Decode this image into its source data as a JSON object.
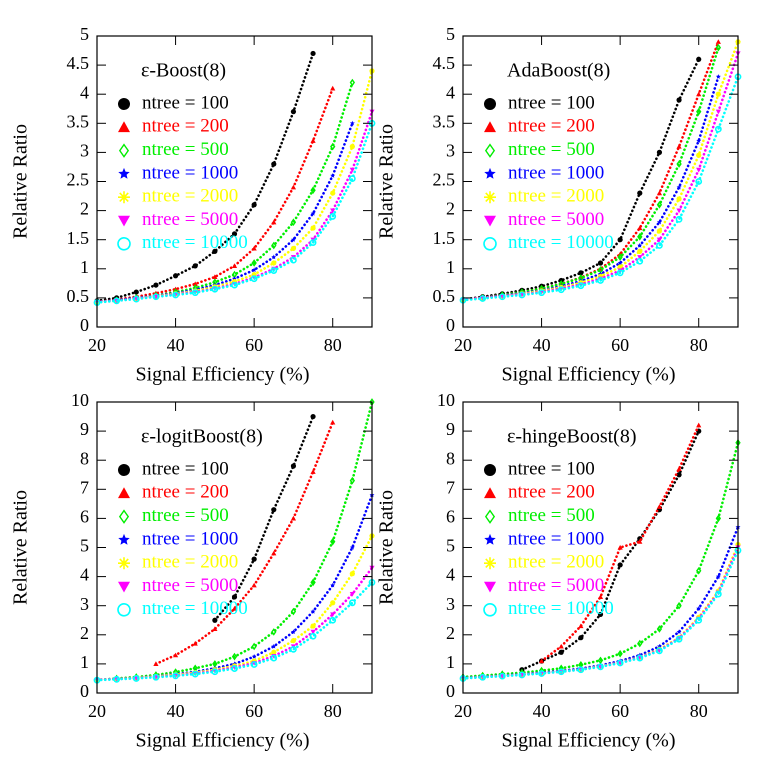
{
  "chart_data": [
    {
      "type": "line",
      "title": "ε-Boost(8)",
      "xlabel": "Signal Efficiency (%)",
      "ylabel": "Relative Ratio",
      "x": [
        20,
        25,
        30,
        35,
        40,
        45,
        50,
        55,
        60,
        65,
        70,
        75,
        80,
        85,
        90
      ],
      "xlim": [
        20,
        90
      ],
      "xticks": [
        20,
        40,
        60,
        80
      ],
      "ylim": [
        0,
        5
      ],
      "yticks": [
        0,
        0.5,
        1,
        1.5,
        2,
        2.5,
        3,
        3.5,
        4,
        4.5,
        5
      ],
      "series": [
        {
          "name": "ntree = 100",
          "color": "#000000",
          "marker": "circle",
          "values": [
            0.45,
            0.5,
            0.6,
            0.72,
            0.88,
            1.05,
            1.3,
            1.6,
            2.1,
            2.8,
            3.7,
            4.7,
            null,
            null,
            null
          ]
        },
        {
          "name": "ntree = 200",
          "color": "#ff0000",
          "marker": "triangle",
          "values": [
            0.43,
            0.47,
            0.52,
            0.58,
            0.65,
            0.74,
            0.86,
            1.05,
            1.35,
            1.8,
            2.4,
            3.2,
            4.1,
            null,
            null
          ]
        },
        {
          "name": "ntree = 500",
          "color": "#00ee00",
          "marker": "diamond",
          "values": [
            0.43,
            0.46,
            0.5,
            0.54,
            0.6,
            0.67,
            0.77,
            0.9,
            1.1,
            1.4,
            1.8,
            2.35,
            3.1,
            4.2,
            null
          ]
        },
        {
          "name": "ntree = 1000",
          "color": "#0000ff",
          "marker": "star",
          "values": [
            0.43,
            0.46,
            0.5,
            0.54,
            0.58,
            0.64,
            0.72,
            0.83,
            0.98,
            1.2,
            1.5,
            1.95,
            2.6,
            3.5,
            null
          ]
        },
        {
          "name": "ntree = 2000",
          "color": "#ffff00",
          "marker": "asterisk",
          "values": [
            0.43,
            0.45,
            0.49,
            0.53,
            0.57,
            0.62,
            0.69,
            0.78,
            0.9,
            1.1,
            1.35,
            1.7,
            2.3,
            3.1,
            4.4
          ]
        },
        {
          "name": "ntree = 5000",
          "color": "#ff00ff",
          "marker": "invtriangle",
          "values": [
            0.43,
            0.45,
            0.49,
            0.52,
            0.56,
            0.6,
            0.66,
            0.74,
            0.85,
            1.0,
            1.2,
            1.5,
            2.0,
            2.7,
            3.7
          ]
        },
        {
          "name": "ntree = 10000",
          "color": "#00ffff",
          "marker": "opencircle",
          "values": [
            0.42,
            0.45,
            0.48,
            0.52,
            0.55,
            0.59,
            0.65,
            0.72,
            0.83,
            0.97,
            1.15,
            1.45,
            1.9,
            2.55,
            3.5
          ]
        }
      ]
    },
    {
      "type": "line",
      "title": "AdaBoost(8)",
      "xlabel": "Signal Efficiency (%)",
      "ylabel": "Relative Ratio",
      "x": [
        20,
        25,
        30,
        35,
        40,
        45,
        50,
        55,
        60,
        65,
        70,
        75,
        80,
        85,
        90
      ],
      "xlim": [
        20,
        90
      ],
      "xticks": [
        20,
        40,
        60,
        80
      ],
      "ylim": [
        0,
        5
      ],
      "yticks": [
        0,
        0.5,
        1,
        1.5,
        2,
        2.5,
        3,
        3.5,
        4,
        4.5,
        5
      ],
      "series": [
        {
          "name": "ntree = 100",
          "color": "#000000",
          "marker": "circle",
          "values": [
            0.47,
            0.52,
            0.57,
            0.63,
            0.7,
            0.8,
            0.93,
            1.1,
            1.5,
            2.3,
            3.0,
            3.9,
            4.6,
            null,
            null
          ]
        },
        {
          "name": "ntree = 200",
          "color": "#ff0000",
          "marker": "triangle",
          "values": [
            0.47,
            0.5,
            0.55,
            0.6,
            0.66,
            0.74,
            0.85,
            1.0,
            1.25,
            1.7,
            2.3,
            3.1,
            4.0,
            4.9,
            null
          ]
        },
        {
          "name": "ntree = 500",
          "color": "#00ee00",
          "marker": "diamond",
          "values": [
            0.47,
            0.5,
            0.55,
            0.6,
            0.66,
            0.74,
            0.84,
            0.98,
            1.2,
            1.55,
            2.1,
            2.8,
            3.7,
            4.8,
            null
          ]
        },
        {
          "name": "ntree = 1000",
          "color": "#0000ff",
          "marker": "star",
          "values": [
            0.47,
            0.5,
            0.54,
            0.58,
            0.63,
            0.7,
            0.79,
            0.91,
            1.1,
            1.4,
            1.8,
            2.4,
            3.2,
            4.3,
            null
          ]
        },
        {
          "name": "ntree = 2000",
          "color": "#ffff00",
          "marker": "asterisk",
          "values": [
            0.47,
            0.5,
            0.53,
            0.57,
            0.62,
            0.68,
            0.76,
            0.87,
            1.03,
            1.3,
            1.65,
            2.2,
            2.95,
            4.0,
            4.9
          ]
        },
        {
          "name": "ntree = 5000",
          "color": "#ff00ff",
          "marker": "invtriangle",
          "values": [
            0.47,
            0.5,
            0.53,
            0.56,
            0.6,
            0.66,
            0.73,
            0.83,
            0.97,
            1.2,
            1.5,
            2.0,
            2.7,
            3.7,
            4.7
          ]
        },
        {
          "name": "ntree = 10000",
          "color": "#00ffff",
          "marker": "opencircle",
          "values": [
            0.46,
            0.49,
            0.52,
            0.55,
            0.59,
            0.64,
            0.71,
            0.8,
            0.93,
            1.13,
            1.4,
            1.85,
            2.5,
            3.4,
            4.3
          ]
        }
      ]
    },
    {
      "type": "line",
      "title": "ε-logitBoost(8)",
      "xlabel": "Signal Efficiency (%)",
      "ylabel": "Relative Ratio",
      "x": [
        20,
        25,
        30,
        35,
        40,
        45,
        50,
        55,
        60,
        65,
        70,
        75,
        80,
        85,
        90
      ],
      "xlim": [
        20,
        90
      ],
      "xticks": [
        20,
        40,
        60,
        80
      ],
      "ylim": [
        0,
        10
      ],
      "yticks": [
        0,
        1,
        2,
        3,
        4,
        5,
        6,
        7,
        8,
        9,
        10
      ],
      "series": [
        {
          "name": "ntree = 100",
          "color": "#000000",
          "marker": "circle",
          "values": [
            null,
            null,
            null,
            null,
            null,
            null,
            2.5,
            3.3,
            4.6,
            6.3,
            7.8,
            9.5,
            null,
            null,
            null
          ]
        },
        {
          "name": "ntree = 200",
          "color": "#ff0000",
          "marker": "triangle",
          "values": [
            null,
            null,
            null,
            1.0,
            1.3,
            1.7,
            2.2,
            2.9,
            3.7,
            4.8,
            6.0,
            7.6,
            9.3,
            null,
            null
          ]
        },
        {
          "name": "ntree = 500",
          "color": "#00ee00",
          "marker": "diamond",
          "values": [
            0.45,
            0.5,
            0.55,
            0.62,
            0.72,
            0.85,
            1.0,
            1.25,
            1.6,
            2.1,
            2.8,
            3.8,
            5.2,
            7.3,
            10
          ]
        },
        {
          "name": "ntree = 1000",
          "color": "#0000ff",
          "marker": "star",
          "values": [
            0.45,
            0.48,
            0.52,
            0.58,
            0.65,
            0.73,
            0.85,
            1.0,
            1.25,
            1.6,
            2.1,
            2.8,
            3.7,
            5.0,
            6.8
          ]
        },
        {
          "name": "ntree = 2000",
          "color": "#ffff00",
          "marker": "asterisk",
          "values": [
            0.45,
            0.48,
            0.52,
            0.57,
            0.63,
            0.7,
            0.8,
            0.93,
            1.1,
            1.4,
            1.8,
            2.3,
            3.1,
            4.1,
            5.4
          ]
        },
        {
          "name": "ntree = 5000",
          "color": "#ff00ff",
          "marker": "invtriangle",
          "values": [
            0.45,
            0.48,
            0.51,
            0.55,
            0.6,
            0.67,
            0.76,
            0.88,
            1.03,
            1.27,
            1.6,
            2.1,
            2.7,
            3.4,
            4.3
          ]
        },
        {
          "name": "ntree = 10000",
          "color": "#00ffff",
          "marker": "opencircle",
          "values": [
            0.44,
            0.47,
            0.5,
            0.54,
            0.59,
            0.65,
            0.73,
            0.84,
            0.98,
            1.2,
            1.5,
            1.95,
            2.5,
            3.1,
            3.8
          ]
        }
      ]
    },
    {
      "type": "line",
      "title": "ε-hingeBoost(8)",
      "xlabel": "Signal Efficiency (%)",
      "ylabel": "Relative Ratio",
      "x": [
        20,
        25,
        30,
        35,
        40,
        45,
        50,
        55,
        60,
        65,
        70,
        75,
        80,
        85,
        90
      ],
      "xlim": [
        20,
        90
      ],
      "xticks": [
        20,
        40,
        60,
        80
      ],
      "ylim": [
        0,
        10
      ],
      "yticks": [
        0,
        1,
        2,
        3,
        4,
        5,
        6,
        7,
        8,
        9,
        10
      ],
      "series": [
        {
          "name": "ntree = 100",
          "color": "#000000",
          "marker": "circle",
          "values": [
            null,
            null,
            null,
            0.8,
            1.1,
            1.4,
            1.9,
            2.7,
            4.4,
            5.3,
            6.3,
            7.5,
            9.0,
            null,
            null
          ]
        },
        {
          "name": "ntree = 200",
          "color": "#ff0000",
          "marker": "triangle",
          "values": [
            null,
            null,
            null,
            null,
            1.1,
            1.6,
            2.3,
            3.3,
            5.0,
            5.2,
            6.4,
            7.7,
            9.2,
            null,
            null
          ]
        },
        {
          "name": "ntree = 500",
          "color": "#00ee00",
          "marker": "diamond",
          "values": [
            0.55,
            0.6,
            0.65,
            0.7,
            0.77,
            0.85,
            0.97,
            1.12,
            1.35,
            1.7,
            2.2,
            3.0,
            4.2,
            6.0,
            8.6
          ]
        },
        {
          "name": "ntree = 1000",
          "color": "#0000ff",
          "marker": "star",
          "values": [
            0.52,
            0.56,
            0.6,
            0.64,
            0.7,
            0.76,
            0.84,
            0.95,
            1.1,
            1.3,
            1.6,
            2.1,
            2.9,
            4.0,
            5.7
          ]
        },
        {
          "name": "ntree = 2000",
          "color": "#ffff00",
          "marker": "asterisk",
          "values": [
            0.51,
            0.55,
            0.59,
            0.63,
            0.68,
            0.74,
            0.81,
            0.92,
            1.05,
            1.23,
            1.5,
            1.9,
            2.6,
            3.5,
            5.1
          ]
        },
        {
          "name": "ntree = 5000",
          "color": "#ff00ff",
          "marker": "invtriangle",
          "values": [
            0.5,
            0.55,
            0.58,
            0.63,
            0.68,
            0.73,
            0.81,
            0.91,
            1.04,
            1.22,
            1.47,
            1.88,
            2.55,
            3.45,
            5.0
          ]
        },
        {
          "name": "ntree = 10000",
          "color": "#00ffff",
          "marker": "opencircle",
          "values": [
            0.5,
            0.54,
            0.58,
            0.62,
            0.67,
            0.73,
            0.8,
            0.9,
            1.03,
            1.2,
            1.45,
            1.85,
            2.5,
            3.4,
            4.9
          ]
        }
      ]
    }
  ]
}
